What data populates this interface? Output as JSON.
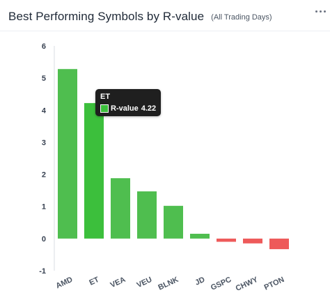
{
  "header": {
    "title": "Best Performing Symbols by R-value",
    "subtitle": "(All Trading Days)"
  },
  "colors": {
    "positive": "#4fbe4f",
    "highlight": "#3cbf3c",
    "negative": "#ee5a5a"
  },
  "tooltip": {
    "symbol": "ET",
    "series": "R-value",
    "value": "4.22"
  },
  "chart_data": {
    "type": "bar",
    "categories": [
      "AMD",
      "ET",
      "VEA",
      "VEU",
      "BLNK",
      "JD",
      "GSPC",
      "CHWY",
      "PTON"
    ],
    "values": [
      5.28,
      4.22,
      1.88,
      1.47,
      1.02,
      0.15,
      -0.1,
      -0.15,
      -0.33
    ],
    "ylim": [
      -1,
      6
    ],
    "yticks": [
      "-1",
      "0",
      "1",
      "2",
      "3",
      "4",
      "5",
      "6"
    ],
    "highlighted": "ET",
    "grid": false
  }
}
